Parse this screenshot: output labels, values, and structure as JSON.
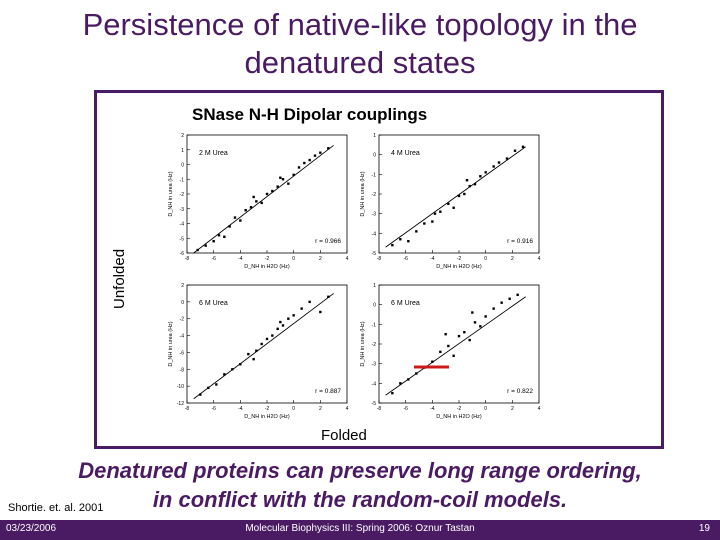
{
  "slide": {
    "title_line1": "Persistence of native-like topology in the",
    "title_line2": "denatured states",
    "statement_line1": "Denatured proteins can preserve long range ordering,",
    "statement_line2": "in conflict with the random-coil models.",
    "citation": "Shortie. et. al. 2001"
  },
  "figure": {
    "subtitle": "SNase N-H  Dipolar couplings",
    "ylabel": "Unfolded",
    "xlabel": "Folded"
  },
  "footer": {
    "date": "03/23/2006",
    "course": "Molecular Biophysics III: Spring 2006: Oznur Tastan",
    "page": "19"
  },
  "colors": {
    "accent": "#4a1a63",
    "highlight": "#cc1a1a"
  },
  "chart_data": [
    {
      "type": "scatter",
      "title": "2 M Urea",
      "xlabel": "D_NH in H2O (Hz)",
      "ylabel": "D_NH in urea (Hz)",
      "xlim": [
        -8,
        4
      ],
      "ylim": [
        -6,
        2
      ],
      "xticks": [
        "-8",
        "-6",
        "-4",
        "-2",
        "0",
        "2",
        "4"
      ],
      "yticks": [
        "-6",
        "-5",
        "-4",
        "-3",
        "-2",
        "-1",
        "0",
        "1",
        "2"
      ],
      "annotation": "r = 0.966",
      "points": [
        [
          -7.2,
          -5.8
        ],
        [
          -6.6,
          -5.5
        ],
        [
          -6.0,
          -5.2
        ],
        [
          -5.6,
          -4.8
        ],
        [
          -5.2,
          -4.9
        ],
        [
          -4.8,
          -4.2
        ],
        [
          -4.4,
          -3.6
        ],
        [
          -4.0,
          -3.8
        ],
        [
          -3.6,
          -3.1
        ],
        [
          -3.2,
          -2.9
        ],
        [
          -2.8,
          -2.5
        ],
        [
          -2.4,
          -2.6
        ],
        [
          -2.0,
          -2.0
        ],
        [
          -1.6,
          -1.8
        ],
        [
          -1.2,
          -1.5
        ],
        [
          -0.8,
          -1.0
        ],
        [
          -0.4,
          -1.3
        ],
        [
          0.0,
          -0.7
        ],
        [
          0.4,
          -0.2
        ],
        [
          0.8,
          0.1
        ],
        [
          1.2,
          0.3
        ],
        [
          1.6,
          0.6
        ],
        [
          2.0,
          0.8
        ],
        [
          2.6,
          1.1
        ],
        [
          -3.0,
          -2.2
        ],
        [
          -1.0,
          -0.9
        ]
      ],
      "fit": [
        [
          -7.5,
          -6.0
        ],
        [
          3.0,
          1.3
        ]
      ]
    },
    {
      "type": "scatter",
      "title": "4 M Urea",
      "xlabel": "D_NH in H2O (Hz)",
      "ylabel": "D_NH in urea (Hz)",
      "xlim": [
        -8,
        4
      ],
      "ylim": [
        -5,
        1
      ],
      "xticks": [
        "-8",
        "-6",
        "-4",
        "-2",
        "0",
        "2",
        "4"
      ],
      "yticks": [
        "-5",
        "-4",
        "-3",
        "-2",
        "-1",
        "0",
        "1"
      ],
      "annotation": "r = 0.916",
      "points": [
        [
          -7.0,
          -4.6
        ],
        [
          -6.4,
          -4.3
        ],
        [
          -5.8,
          -4.4
        ],
        [
          -5.2,
          -3.9
        ],
        [
          -4.6,
          -3.5
        ],
        [
          -4.0,
          -3.4
        ],
        [
          -3.4,
          -2.9
        ],
        [
          -2.8,
          -2.5
        ],
        [
          -2.4,
          -2.7
        ],
        [
          -2.0,
          -2.1
        ],
        [
          -1.6,
          -2.0
        ],
        [
          -1.2,
          -1.6
        ],
        [
          -0.8,
          -1.5
        ],
        [
          -0.4,
          -1.1
        ],
        [
          0.0,
          -0.9
        ],
        [
          0.6,
          -0.6
        ],
        [
          1.0,
          -0.4
        ],
        [
          1.6,
          -0.2
        ],
        [
          2.2,
          0.2
        ],
        [
          2.8,
          0.4
        ],
        [
          -3.8,
          -3.0
        ],
        [
          -1.4,
          -1.3
        ]
      ],
      "fit": [
        [
          -7.5,
          -4.7
        ],
        [
          3.0,
          0.4
        ]
      ]
    },
    {
      "type": "scatter",
      "title": "6 M Urea",
      "xlabel": "D_NH in H2O (Hz)",
      "ylabel": "D_NH in urea (Hz)",
      "xlim": [
        -8,
        4
      ],
      "ylim": [
        -12,
        2
      ],
      "xticks": [
        "-8",
        "-6",
        "-4",
        "-2",
        "0",
        "2",
        "4"
      ],
      "yticks": [
        "-12",
        "-10",
        "-8",
        "-6",
        "-4",
        "-2",
        "0",
        "2"
      ],
      "annotation": "r = 0.887",
      "points": [
        [
          -7.0,
          -11.0
        ],
        [
          -6.4,
          -10.2
        ],
        [
          -5.8,
          -9.8
        ],
        [
          -5.2,
          -8.6
        ],
        [
          -4.6,
          -8.0
        ],
        [
          -4.0,
          -7.4
        ],
        [
          -3.4,
          -6.2
        ],
        [
          -2.8,
          -5.8
        ],
        [
          -2.4,
          -5.0
        ],
        [
          -2.0,
          -4.4
        ],
        [
          -1.6,
          -4.0
        ],
        [
          -1.2,
          -3.2
        ],
        [
          -0.8,
          -2.8
        ],
        [
          -0.4,
          -2.0
        ],
        [
          0.0,
          -1.6
        ],
        [
          0.6,
          -0.8
        ],
        [
          1.2,
          0.0
        ],
        [
          2.0,
          -1.2
        ],
        [
          2.6,
          0.6
        ],
        [
          -3.0,
          -6.8
        ],
        [
          -1.0,
          -2.4
        ]
      ],
      "fit": [
        [
          -7.5,
          -11.5
        ],
        [
          3.0,
          1.0
        ]
      ]
    },
    {
      "type": "scatter",
      "title": "6 M Urea",
      "xlabel": "D_NH in H2O (Hz)",
      "ylabel": "D_NH in urea (Hz)",
      "xlim": [
        -8,
        4
      ],
      "ylim": [
        -5,
        1
      ],
      "xticks": [
        "-8",
        "-6",
        "-4",
        "-2",
        "0",
        "2",
        "4"
      ],
      "yticks": [
        "-5",
        "-4",
        "-3",
        "-2",
        "-1",
        "0",
        "1"
      ],
      "annotation": "r = 0.822",
      "points": [
        [
          -7.0,
          -4.5
        ],
        [
          -6.4,
          -4.0
        ],
        [
          -5.8,
          -3.8
        ],
        [
          -5.2,
          -3.5
        ],
        [
          -4.6,
          -3.2
        ],
        [
          -4.0,
          -2.9
        ],
        [
          -3.4,
          -2.4
        ],
        [
          -2.8,
          -2.1
        ],
        [
          -2.4,
          -2.6
        ],
        [
          -2.0,
          -1.6
        ],
        [
          -1.6,
          -1.4
        ],
        [
          -1.2,
          -1.8
        ],
        [
          -0.8,
          -0.9
        ],
        [
          -0.4,
          -1.1
        ],
        [
          0.0,
          -0.6
        ],
        [
          0.6,
          -0.2
        ],
        [
          1.2,
          0.1
        ],
        [
          1.8,
          0.3
        ],
        [
          2.4,
          0.5
        ],
        [
          -3.0,
          -1.5
        ],
        [
          -1.0,
          -0.4
        ]
      ],
      "fit": [
        [
          -7.5,
          -4.6
        ],
        [
          3.0,
          0.4
        ]
      ]
    }
  ]
}
